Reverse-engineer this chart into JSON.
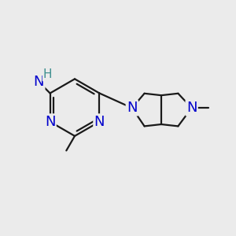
{
  "background_color": "#ebebeb",
  "bond_color": "#1a1a1a",
  "N_color": "#0000cc",
  "H_color": "#3d8f8f",
  "line_width": 1.6,
  "font_size_N": 13,
  "font_size_H": 11,
  "figsize": [
    3.0,
    3.0
  ],
  "dpi": 100,
  "xlim": [
    0,
    10
  ],
  "ylim": [
    0,
    10
  ]
}
